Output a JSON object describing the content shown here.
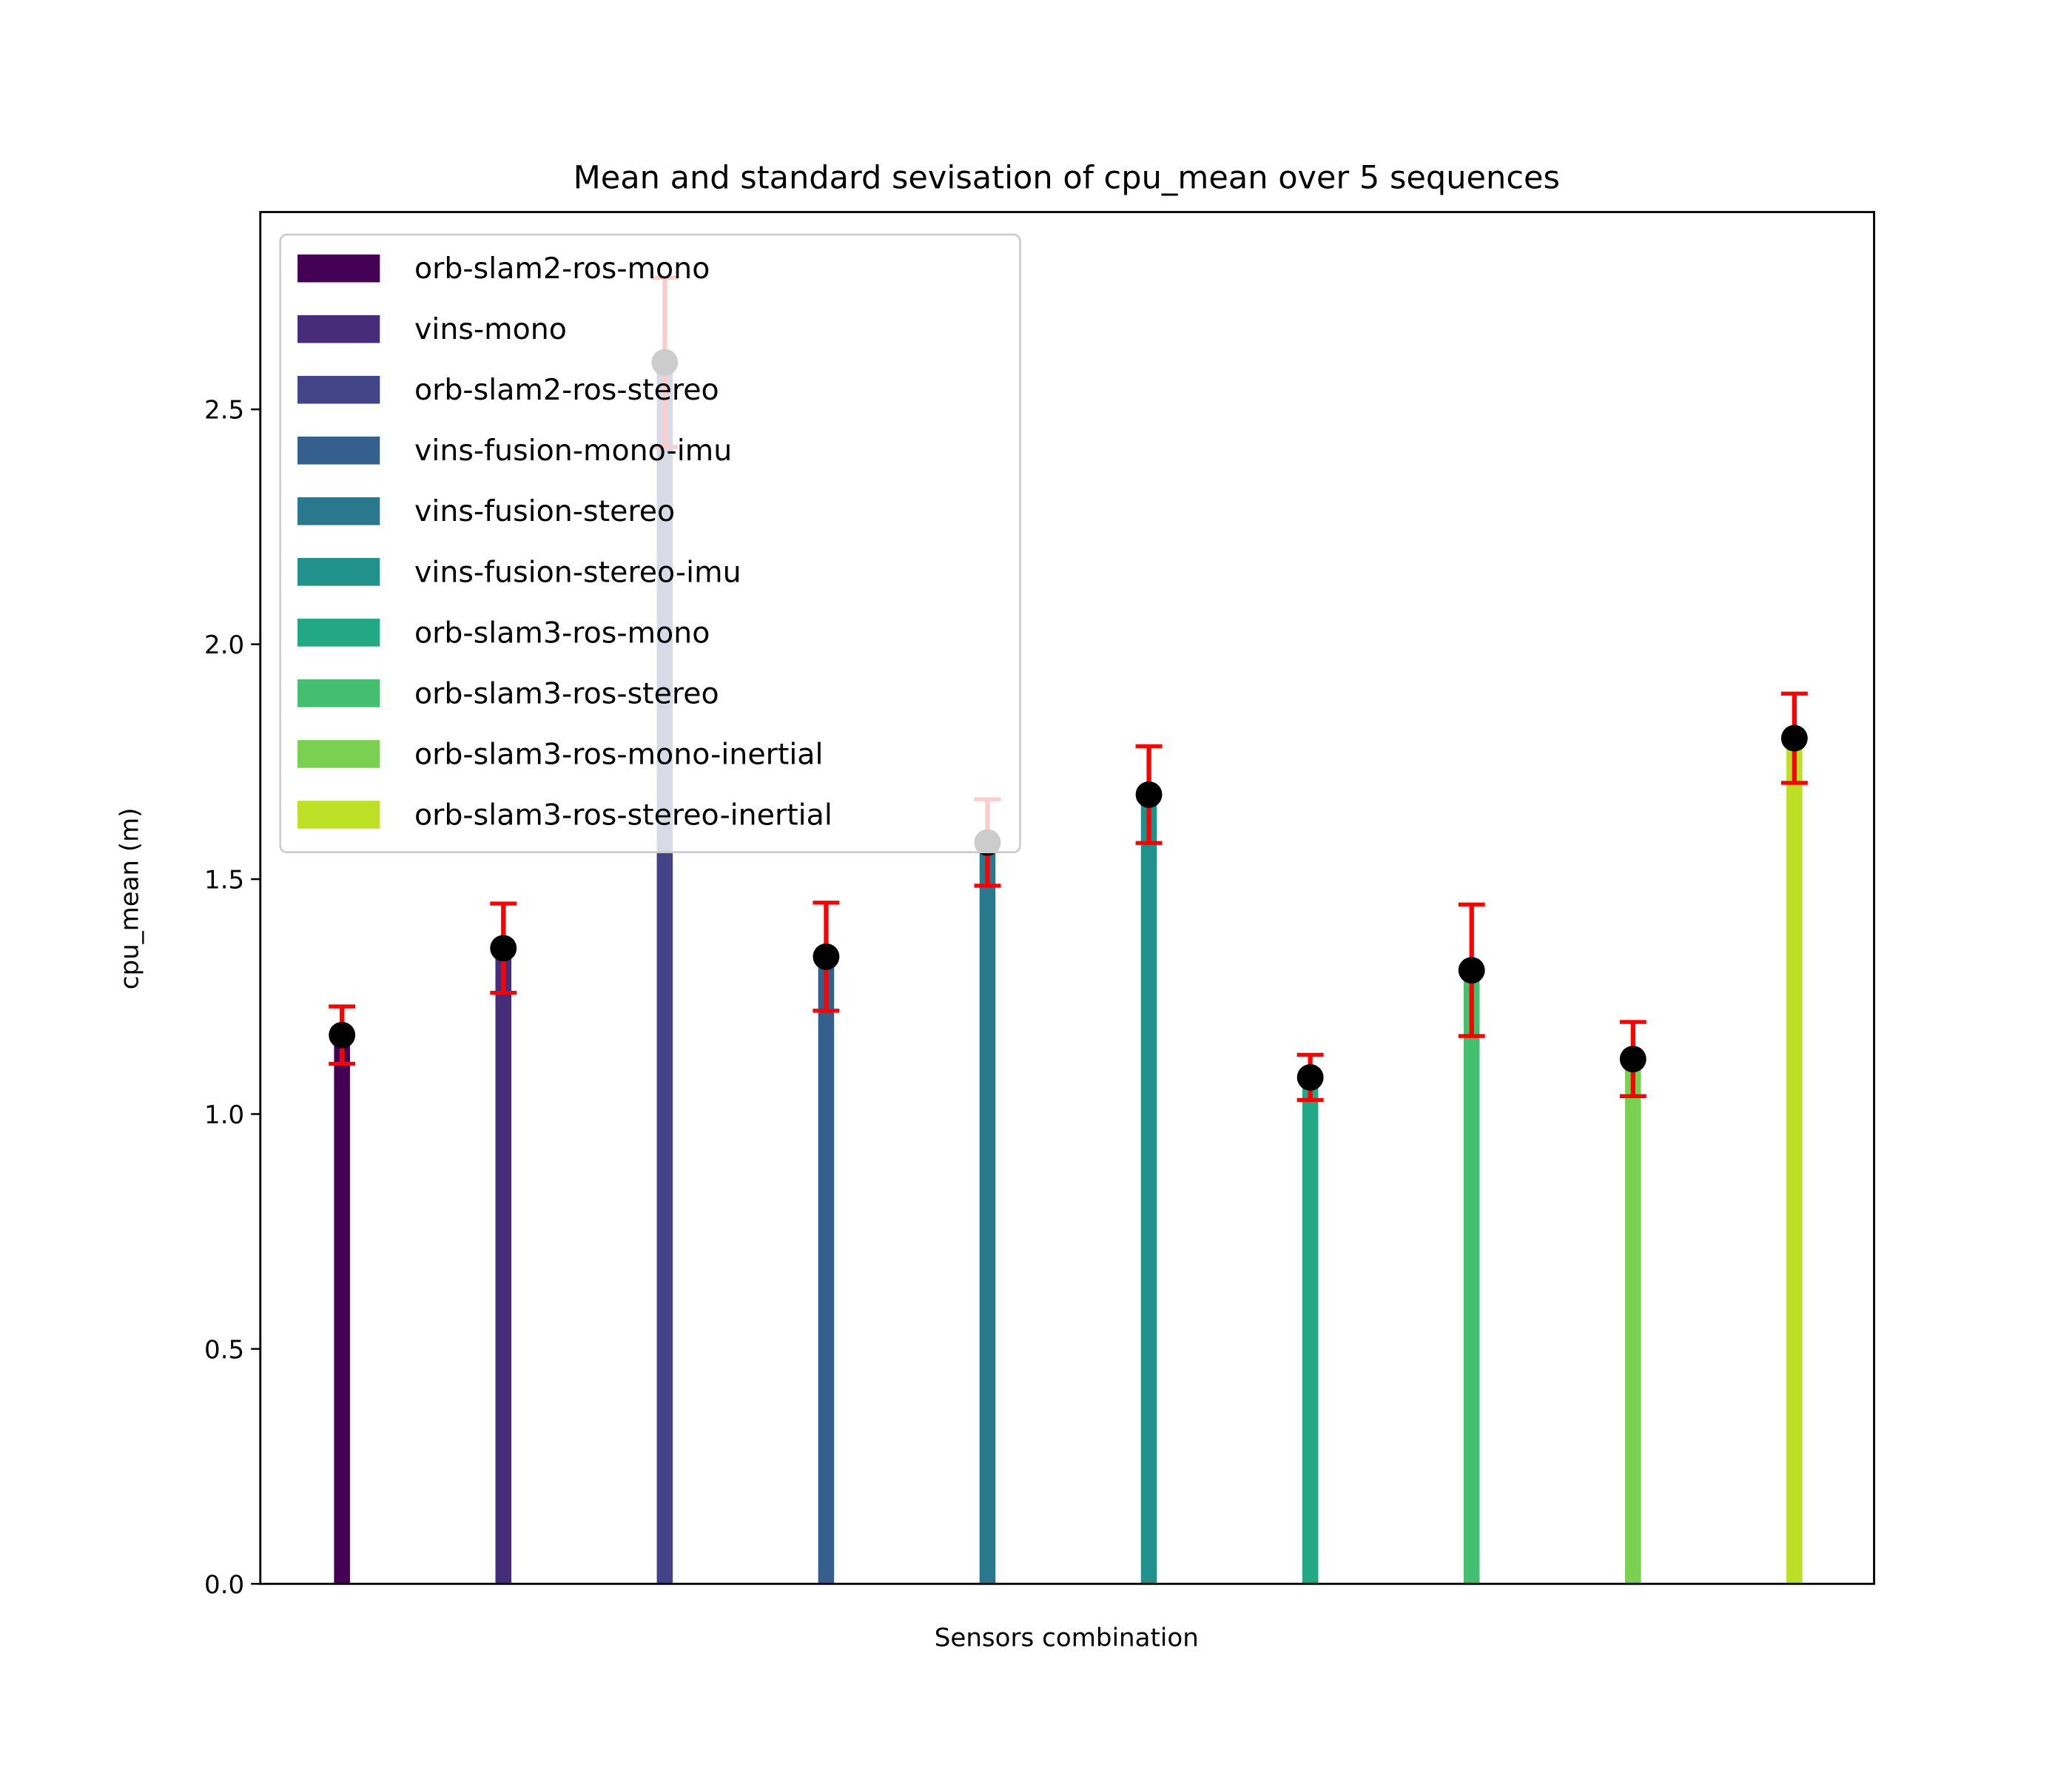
{
  "chart_data": {
    "type": "bar",
    "title": "Mean and standard sevisation of cpu_mean over 5 sequences",
    "xlabel": "Sensors combination",
    "ylabel": "cpu_mean (m)",
    "ylim": [
      0,
      2.92
    ],
    "yticks": [
      0.0,
      0.5,
      1.0,
      1.5,
      2.0,
      2.5
    ],
    "ytick_labels": [
      "0.0",
      "0.5",
      "1.0",
      "1.5",
      "2.0",
      "2.5"
    ],
    "grid": false,
    "legend_placement": "top-left",
    "categories": [
      "orb-slam2-ros-mono",
      "vins-mono",
      "orb-slam2-ros-stereo",
      "vins-fusion-mono-imu",
      "vins-fusion-stereo",
      "vins-fusion-stereo-imu",
      "orb-slam3-ros-mono",
      "orb-slam3-ros-stereo",
      "orb-slam3-ros-mono-inertial",
      "orb-slam3-ros-stereo-inertial"
    ],
    "values": [
      1.168,
      1.353,
      2.6,
      1.335,
      1.578,
      1.68,
      1.078,
      1.306,
      1.117,
      1.8
    ],
    "std": [
      0.061,
      0.095,
      0.18,
      0.115,
      0.092,
      0.103,
      0.048,
      0.14,
      0.079,
      0.095
    ],
    "colors": [
      "#440154",
      "#472c7a",
      "#414487",
      "#355f8d",
      "#2a788e",
      "#21918c",
      "#22a884",
      "#44bf70",
      "#7ad151",
      "#bddf26"
    ],
    "errorbar_color": "#ff0000",
    "marker_color": "#000000"
  }
}
